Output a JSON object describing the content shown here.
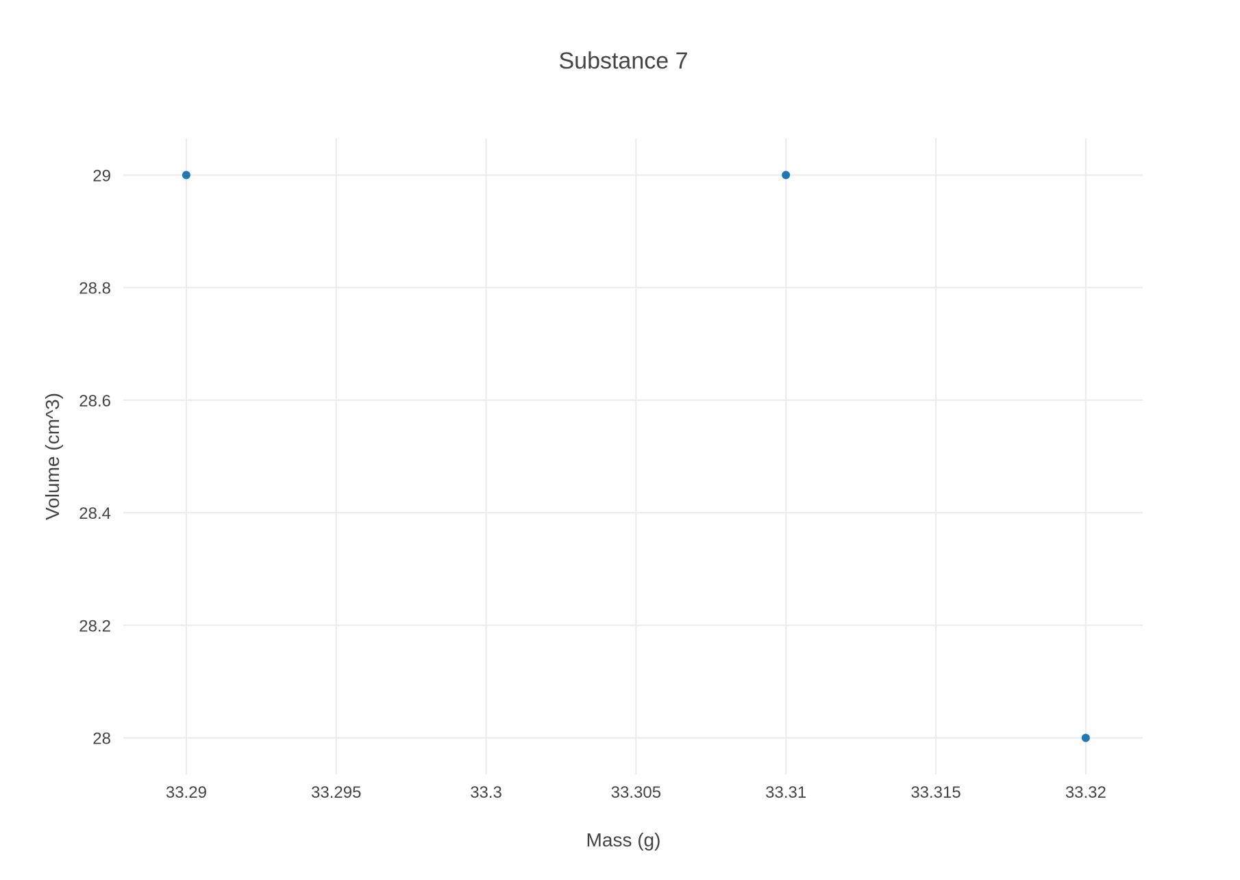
{
  "chart_data": {
    "type": "scatter",
    "title": "Substance 7",
    "xlabel": "Mass (g)",
    "ylabel": "Volume (cm^3)",
    "x_ticks": [
      "33.29",
      "33.295",
      "33.3",
      "33.305",
      "33.31",
      "33.315",
      "33.32"
    ],
    "y_ticks": [
      "28",
      "28.2",
      "28.4",
      "28.6",
      "28.8",
      "29"
    ],
    "xlim": [
      33.2879,
      33.3219
    ],
    "ylim": [
      27.935,
      29.065
    ],
    "grid": true,
    "series": [
      {
        "color": "#1f77b4",
        "points": [
          {
            "x": 33.29,
            "y": 29
          },
          {
            "x": 33.31,
            "y": 29
          },
          {
            "x": 33.32,
            "y": 28
          }
        ]
      }
    ]
  }
}
